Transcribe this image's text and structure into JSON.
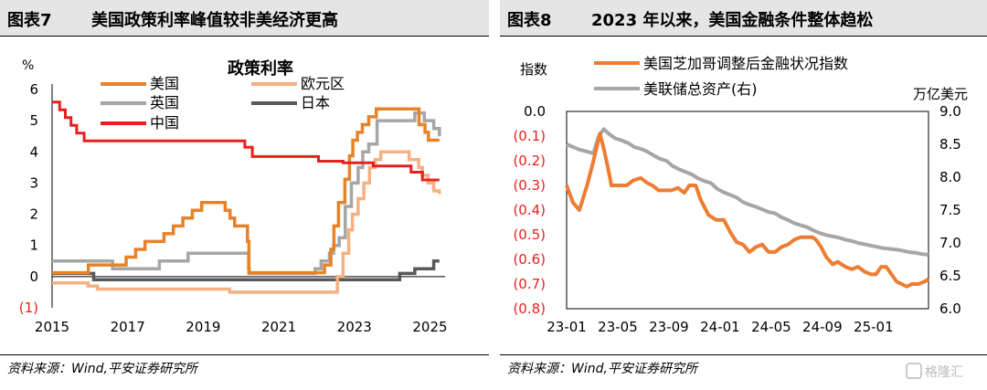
{
  "charts": {
    "left": {
      "figure_number": "图表7",
      "figure_title": "美国政策利率峰值较非美经济更高",
      "source": "资料来源：Wind,平安证券研究所"
    },
    "right": {
      "figure_number": "图表8",
      "figure_title": "2023 年以来，美国金融条件整体趋松",
      "source": "资料来源：Wind,平安证券研究所"
    }
  },
  "watermark": "格隆汇",
  "chart_data": [
    {
      "type": "line",
      "title": "政策利率",
      "ylabel": "%",
      "ylim": [
        -1,
        6
      ],
      "y_ticks": [
        -1,
        0,
        1,
        2,
        3,
        4,
        5,
        6
      ],
      "y_tick_labels": [
        "(1)",
        "0",
        "1",
        "2",
        "3",
        "4",
        "5",
        "6"
      ],
      "xlim": [
        2015,
        2025.4
      ],
      "x_ticks": [
        2015,
        2017,
        2019,
        2021,
        2023,
        2025
      ],
      "x_tick_labels": [
        "2015",
        "2017",
        "2019",
        "2021",
        "2023",
        "2025"
      ],
      "legend_position": "top",
      "grid": false,
      "series": [
        {
          "name": "美国",
          "color": "#e6832a",
          "step": true,
          "x": [
            2015.0,
            2015.96,
            2016.96,
            2017.21,
            2017.46,
            2017.96,
            2018.21,
            2018.46,
            2018.71,
            2018.96,
            2019.58,
            2019.71,
            2019.83,
            2020.17,
            2020.21,
            2022.21,
            2022.38,
            2022.46,
            2022.58,
            2022.75,
            2022.87,
            2022.96,
            2023.08,
            2023.21,
            2023.38,
            2023.58,
            2024.71,
            2024.87,
            2024.96,
            2025.25
          ],
          "values": [
            0.125,
            0.375,
            0.625,
            0.875,
            1.125,
            1.375,
            1.625,
            1.875,
            2.125,
            2.375,
            2.125,
            1.875,
            1.625,
            1.125,
            0.125,
            0.375,
            0.875,
            1.625,
            2.375,
            3.125,
            3.875,
            4.375,
            4.625,
            4.875,
            5.125,
            5.375,
            4.875,
            4.625,
            4.375,
            4.375
          ]
        },
        {
          "name": "英国",
          "color": "#a6a6a6",
          "step": true,
          "x": [
            2015.0,
            2016.6,
            2017.84,
            2018.6,
            2020.2,
            2020.22,
            2021.96,
            2022.12,
            2022.34,
            2022.45,
            2022.6,
            2022.76,
            2022.92,
            2023.1,
            2023.22,
            2023.38,
            2023.6,
            2024.6,
            2024.85,
            2025.1,
            2025.25
          ],
          "values": [
            0.5,
            0.25,
            0.5,
            0.75,
            0.25,
            0.1,
            0.25,
            0.5,
            0.75,
            1.0,
            1.25,
            2.25,
            3.0,
            3.5,
            4.0,
            4.25,
            5.0,
            5.25,
            5.0,
            4.75,
            4.5
          ]
        },
        {
          "name": "欧元区",
          "color": "#f4b183",
          "step": true,
          "x": [
            2015.0,
            2015.95,
            2016.2,
            2019.7,
            2022.55,
            2022.7,
            2022.85,
            2022.95,
            2023.1,
            2023.25,
            2023.4,
            2023.55,
            2023.7,
            2024.45,
            2024.7,
            2024.8,
            2024.95,
            2025.1,
            2025.25
          ],
          "values": [
            -0.2,
            -0.3,
            -0.4,
            -0.5,
            0.0,
            0.75,
            1.5,
            2.0,
            2.5,
            3.0,
            3.5,
            3.75,
            4.0,
            3.75,
            3.5,
            3.25,
            3.0,
            2.75,
            2.65
          ]
        },
        {
          "name": "中国",
          "color": "#e81f1f",
          "step": true,
          "x": [
            2015.0,
            2015.2,
            2015.35,
            2015.5,
            2015.65,
            2015.85,
            2020.1,
            2020.3,
            2022.05,
            2022.7,
            2023.5,
            2024.5,
            2024.8,
            2025.25
          ],
          "values": [
            5.6,
            5.35,
            5.1,
            4.85,
            4.6,
            4.35,
            4.15,
            3.85,
            3.7,
            3.65,
            3.55,
            3.35,
            3.1,
            3.1
          ]
        },
        {
          "name": "日本",
          "color": "#595959",
          "step": true,
          "x": [
            2015.0,
            2016.1,
            2024.2,
            2024.6,
            2025.1,
            2025.25
          ],
          "values": [
            0.1,
            -0.1,
            0.1,
            0.25,
            0.5,
            0.5
          ]
        }
      ]
    },
    {
      "type": "line",
      "ylabel": "指数",
      "y2label": "万亿美元",
      "ylim": [
        -0.8,
        0.0
      ],
      "y_ticks": [
        0.0,
        -0.1,
        -0.2,
        -0.3,
        -0.4,
        -0.5,
        -0.6,
        -0.7,
        -0.8
      ],
      "y_tick_labels": [
        "0.0",
        "(0.1)",
        "(0.2)",
        "(0.3)",
        "(0.4)",
        "(0.5)",
        "(0.6)",
        "(0.7)",
        "(0.8)"
      ],
      "y2lim": [
        6.0,
        9.0
      ],
      "y2_ticks": [
        6.0,
        6.5,
        7.0,
        7.5,
        8.0,
        8.5,
        9.0
      ],
      "y2_tick_labels": [
        "6.0",
        "6.5",
        "7.0",
        "7.5",
        "8.0",
        "8.5",
        "9.0"
      ],
      "xlim": [
        0,
        28.3
      ],
      "x_ticks": [
        0,
        4,
        8,
        12,
        16,
        20,
        24
      ],
      "x_tick_labels": [
        "23-01",
        "23-05",
        "23-09",
        "24-01",
        "24-05",
        "24-09",
        "25-01"
      ],
      "x_unit": "months since 2023-01",
      "legend_position": "top",
      "grid": false,
      "series": [
        {
          "name": "美国芝加哥调整后金融状况指数",
          "axis": "left",
          "color": "#ed7d31",
          "x": [
            0,
            0.5,
            1.0,
            1.6,
            2.1,
            2.6,
            2.9,
            3.2,
            3.5,
            3.9,
            4.3,
            4.7,
            5.2,
            5.8,
            6.3,
            6.7,
            7.2,
            7.7,
            8.2,
            8.7,
            9.2,
            9.6,
            10.1,
            10.5,
            11.1,
            11.7,
            12.3,
            12.8,
            13.3,
            13.8,
            14.3,
            14.8,
            15.3,
            15.8,
            16.3,
            16.8,
            17.3,
            17.8,
            18.3,
            18.8,
            19.2,
            19.5,
            19.9,
            20.3,
            20.8,
            21.2,
            21.8,
            22.3,
            22.8,
            23.3,
            23.8,
            24.2,
            24.6,
            25.0,
            25.4,
            25.8,
            26.2,
            26.6,
            27.0,
            27.5,
            28.0,
            28.3
          ],
          "values": [
            -0.3,
            -0.37,
            -0.4,
            -0.3,
            -0.2,
            -0.09,
            -0.15,
            -0.22,
            -0.3,
            -0.3,
            -0.3,
            -0.3,
            -0.28,
            -0.27,
            -0.29,
            -0.3,
            -0.32,
            -0.32,
            -0.32,
            -0.31,
            -0.33,
            -0.3,
            -0.3,
            -0.36,
            -0.42,
            -0.44,
            -0.44,
            -0.49,
            -0.53,
            -0.54,
            -0.57,
            -0.55,
            -0.54,
            -0.57,
            -0.57,
            -0.55,
            -0.54,
            -0.52,
            -0.51,
            -0.51,
            -0.51,
            -0.52,
            -0.55,
            -0.59,
            -0.62,
            -0.61,
            -0.63,
            -0.64,
            -0.63,
            -0.65,
            -0.66,
            -0.66,
            -0.63,
            -0.63,
            -0.66,
            -0.69,
            -0.7,
            -0.71,
            -0.7,
            -0.7,
            -0.69,
            -0.68
          ]
        },
        {
          "name": "美联储总资产(右)",
          "axis": "right",
          "color": "#a6a6a6",
          "x": [
            0,
            0.5,
            1.0,
            1.6,
            2.1,
            2.5,
            2.9,
            3.3,
            3.8,
            4.3,
            4.8,
            5.3,
            5.8,
            6.3,
            6.8,
            7.3,
            7.8,
            8.3,
            8.8,
            9.3,
            9.8,
            10.3,
            10.8,
            11.3,
            11.8,
            12.3,
            12.8,
            13.3,
            13.8,
            14.3,
            14.8,
            15.3,
            15.8,
            16.3,
            16.8,
            17.3,
            17.8,
            18.3,
            18.8,
            19.3,
            19.8,
            20.3,
            20.8,
            21.3,
            21.8,
            22.3,
            22.8,
            23.3,
            23.8,
            24.3,
            24.8,
            25.3,
            25.8,
            26.3,
            26.8,
            27.3,
            27.8,
            28.3
          ],
          "values": [
            8.5,
            8.46,
            8.42,
            8.39,
            8.36,
            8.62,
            8.73,
            8.66,
            8.59,
            8.56,
            8.52,
            8.46,
            8.43,
            8.39,
            8.33,
            8.28,
            8.25,
            8.17,
            8.12,
            8.08,
            8.04,
            7.98,
            7.94,
            7.91,
            7.82,
            7.77,
            7.73,
            7.69,
            7.62,
            7.58,
            7.55,
            7.51,
            7.47,
            7.45,
            7.39,
            7.35,
            7.3,
            7.27,
            7.24,
            7.19,
            7.15,
            7.12,
            7.1,
            7.08,
            7.05,
            7.03,
            7.0,
            6.98,
            6.96,
            6.94,
            6.92,
            6.91,
            6.9,
            6.88,
            6.86,
            6.85,
            6.83,
            6.82
          ]
        }
      ]
    }
  ]
}
